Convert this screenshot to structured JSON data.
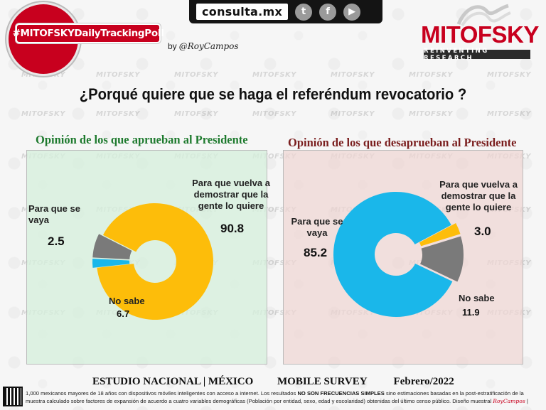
{
  "header": {
    "site": "consulta.mx",
    "social": [
      {
        "name": "twitter",
        "glyph": "t"
      },
      {
        "name": "facebook",
        "glyph": "f"
      },
      {
        "name": "youtube",
        "glyph": "▶"
      }
    ],
    "hashtag": "#MITOFSKYDailyTrackingPoll",
    "byline": "by",
    "author": "@RoyCampos",
    "logo_name": "MITOFSKY",
    "logo_tagline": "REINVENTING RESEARCH",
    "watermark": "MITOFSKY"
  },
  "title": "¿Porqué quiere que se haga el referéndum revocatorio ?",
  "colors": {
    "yellow": "#fdbd0a",
    "blue": "#1ab7ea",
    "gray": "#7a7a7a",
    "brand_red": "#c8001e"
  },
  "chart_data": [
    {
      "type": "pie",
      "donut": true,
      "title": "Opinión de los que aprueban al Presidente",
      "categories": [
        "Para que vuelva a demostrar que la gente lo quiere",
        "Para que se vaya",
        "No sabe"
      ],
      "values": [
        90.8,
        2.5,
        6.7
      ],
      "colors": [
        "#fdbd0a",
        "#1ab7ea",
        "#7a7a7a"
      ],
      "labels": [
        {
          "text": "Para que vuelva a demostrar que la gente lo quiere",
          "value": "90.8"
        },
        {
          "text": "Para que se vaya",
          "value": "2.5"
        },
        {
          "text": "No sabe",
          "value": "6.7"
        }
      ]
    },
    {
      "type": "pie",
      "donut": true,
      "title": "Opinión de los que desaprueban al Presidente",
      "categories": [
        "Para que vuelva a demostrar que la gente lo quiere",
        "No sabe",
        "Para que se vaya"
      ],
      "values": [
        3.0,
        11.9,
        85.2
      ],
      "colors": [
        "#fdbd0a",
        "#7a7a7a",
        "#1ab7ea"
      ],
      "labels": [
        {
          "text": "Para que vuelva a demostrar que la gente lo quiere",
          "value": "3.0"
        },
        {
          "text": "No sabe",
          "value": "11.9"
        },
        {
          "text": "Para que se vaya",
          "value": "85.2"
        }
      ]
    }
  ],
  "footer": {
    "study": "ESTUDIO NACIONAL | MÉXICO",
    "mode": "MOBILE SURVEY",
    "date": "Febrero/2022",
    "note_part1": "1,000 mexicanos mayores de 18 años con dispositivos móviles inteligentes con acceso a internet. Los resultados",
    "note_bold": "NO SON FRECUENCIAS SIMPLES",
    "note_part2": "sino estimaciones basadas en la post-estratificación de la muestra calculado sobre factores de expansión de acuerdo a cuatro variables demográficas (Población por entidad, sexo, edad y escolaridad) obtenidas del último censo público. Diseño muestral",
    "note_sig": "RoyCampos",
    "note_end": "|"
  }
}
